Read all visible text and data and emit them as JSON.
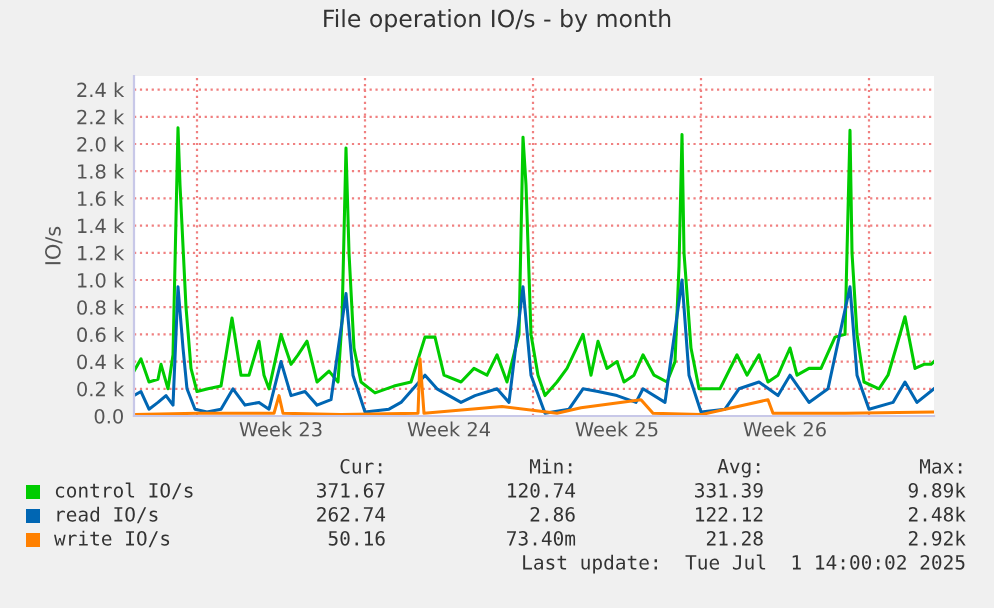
{
  "chart_data": {
    "type": "line",
    "title": "File operation IO/s - by month",
    "ylabel": "IO/s",
    "xlim": [
      "2025-05-29T09:00",
      "2025-07-01T17:00"
    ],
    "xticks": [
      {
        "value": "2025-06-04T12:00",
        "label": "Week 23"
      },
      {
        "value": "2025-06-11T12:00",
        "label": "Week 24"
      },
      {
        "value": "2025-06-18T12:00",
        "label": "Week 25"
      },
      {
        "value": "2025-06-25T12:00",
        "label": "Week 26"
      }
    ],
    "ylim": [
      0,
      2500
    ],
    "yticks": [
      {
        "value": 0,
        "label": "0.0"
      },
      {
        "value": 200,
        "label": "0.2 k"
      },
      {
        "value": 400,
        "label": "0.4 k"
      },
      {
        "value": 600,
        "label": "0.6 k"
      },
      {
        "value": 800,
        "label": "0.8 k"
      },
      {
        "value": 1000,
        "label": "1.0 k"
      },
      {
        "value": 1200,
        "label": "1.2 k"
      },
      {
        "value": 1400,
        "label": "1.4 k"
      },
      {
        "value": 1600,
        "label": "1.6 k"
      },
      {
        "value": 1800,
        "label": "1.8 k"
      },
      {
        "value": 2000,
        "label": "2.0 k"
      },
      {
        "value": 2200,
        "label": "2.2 k"
      },
      {
        "value": 2400,
        "label": "2.4 k"
      }
    ],
    "grid": "y",
    "legend": "bottom",
    "ref_lines": [
      {
        "axis": "x",
        "value": "2025-06-01T00:00",
        "color": "#f08080",
        "line_style": "dotted"
      },
      {
        "axis": "x",
        "value": "2025-06-08T00:00",
        "color": "#f08080",
        "line_style": "dotted"
      },
      {
        "axis": "x",
        "value": "2025-06-15T00:00",
        "color": "#f08080",
        "line_style": "dotted"
      },
      {
        "axis": "x",
        "value": "2025-06-22T00:00",
        "color": "#f08080",
        "line_style": "dotted"
      },
      {
        "axis": "x",
        "value": "2025-06-29T00:00",
        "color": "#f08080",
        "line_style": "dotted"
      }
    ],
    "series": [
      {
        "name": "control IO/s",
        "color": "#00cc00",
        "x": [
          "2025-05-29T09:00",
          "2025-05-29T16:00",
          "2025-05-30T00:00",
          "2025-05-30T09:00",
          "2025-05-30T12:00",
          "2025-05-30T19:00",
          "2025-05-31T00:00",
          "2025-05-31T05:00",
          "2025-05-31T07:00",
          "2025-05-31T13:00",
          "2025-05-31T18:00",
          "2025-06-01T00:00",
          "2025-06-01T11:00",
          "2025-06-02T00:00",
          "2025-06-02T11:00",
          "2025-06-02T20:00",
          "2025-06-03T04:00",
          "2025-06-03T14:00",
          "2025-06-03T19:00",
          "2025-06-04T00:00",
          "2025-06-04T12:00",
          "2025-06-04T22:00",
          "2025-06-05T05:00",
          "2025-06-05T14:00",
          "2025-06-06T00:00",
          "2025-06-06T12:00",
          "2025-06-06T21:00",
          "2025-06-07T01:00",
          "2025-06-07T05:00",
          "2025-06-07T08:00",
          "2025-06-07T13:00",
          "2025-06-07T20:00",
          "2025-06-08T10:00",
          "2025-06-09T05:00",
          "2025-06-09T22:00",
          "2025-06-10T12:00",
          "2025-06-10T22:00",
          "2025-06-11T07:00",
          "2025-06-12T00:00",
          "2025-06-12T13:00",
          "2025-06-13T02:00",
          "2025-06-13T12:00",
          "2025-06-13T22:00",
          "2025-06-14T10:00",
          "2025-06-14T14:00",
          "2025-06-14T17:00",
          "2025-06-14T22:00",
          "2025-06-15T05:00",
          "2025-06-15T12:00",
          "2025-06-16T00:00",
          "2025-06-16T10:00",
          "2025-06-17T02:00",
          "2025-06-17T10:00",
          "2025-06-17T17:00",
          "2025-06-18T02:00",
          "2025-06-18T12:00",
          "2025-06-18T19:00",
          "2025-06-19T05:00",
          "2025-06-19T14:00",
          "2025-06-20T01:00",
          "2025-06-20T14:00",
          "2025-06-20T22:00",
          "2025-06-21T02:00",
          "2025-06-21T05:00",
          "2025-06-21T07:00",
          "2025-06-21T14:00",
          "2025-06-21T22:00",
          "2025-06-22T07:00",
          "2025-06-22T19:00",
          "2025-06-23T12:00",
          "2025-06-23T22:00",
          "2025-06-24T10:00",
          "2025-06-24T19:00",
          "2025-06-25T05:00",
          "2025-06-25T17:00",
          "2025-06-26T00:00",
          "2025-06-26T12:00",
          "2025-06-27T00:00",
          "2025-06-27T14:00",
          "2025-06-28T00:00",
          "2025-06-28T05:00",
          "2025-06-28T07:00",
          "2025-06-28T12:00",
          "2025-06-28T19:00",
          "2025-06-29T10:00",
          "2025-06-29T19:00",
          "2025-06-30T05:00",
          "2025-06-30T12:00",
          "2025-06-30T22:00",
          "2025-07-01T07:00",
          "2025-07-01T14:00",
          "2025-07-01T17:00"
        ],
        "values": [
          330,
          420,
          250,
          270,
          380,
          200,
          450,
          2120,
          1700,
          800,
          350,
          180,
          200,
          220,
          720,
          300,
          300,
          550,
          300,
          200,
          600,
          380,
          450,
          550,
          250,
          330,
          250,
          700,
          1970,
          1200,
          500,
          250,
          170,
          220,
          250,
          580,
          580,
          300,
          250,
          350,
          300,
          450,
          250,
          600,
          2050,
          1700,
          600,
          300,
          150,
          250,
          350,
          600,
          300,
          550,
          350,
          400,
          250,
          300,
          450,
          300,
          250,
          400,
          1100,
          2070,
          1200,
          500,
          200,
          200,
          200,
          450,
          300,
          450,
          250,
          300,
          500,
          300,
          350,
          350,
          580,
          600,
          2100,
          1200,
          600,
          250,
          200,
          300,
          550,
          730,
          350,
          380,
          380,
          400
        ]
      },
      {
        "name": "read IO/s",
        "color": "#0066b3",
        "x": [
          "2025-05-29T09:00",
          "2025-05-29T16:00",
          "2025-05-30T00:00",
          "2025-05-30T09:00",
          "2025-05-30T17:00",
          "2025-05-31T00:00",
          "2025-05-31T05:00",
          "2025-05-31T10:00",
          "2025-05-31T14:00",
          "2025-05-31T22:00",
          "2025-06-01T10:00",
          "2025-06-02T00:00",
          "2025-06-02T12:00",
          "2025-06-03T00:00",
          "2025-06-03T14:00",
          "2025-06-04T00:00",
          "2025-06-04T12:00",
          "2025-06-04T22:00",
          "2025-06-05T12:00",
          "2025-06-06T00:00",
          "2025-06-06T14:00",
          "2025-06-07T05:00",
          "2025-06-07T12:00",
          "2025-06-08T00:00",
          "2025-06-09T00:00",
          "2025-06-09T12:00",
          "2025-06-10T12:00",
          "2025-06-11T00:00",
          "2025-06-12T00:00",
          "2025-06-12T14:00",
          "2025-06-13T12:00",
          "2025-06-14T00:00",
          "2025-06-14T14:00",
          "2025-06-14T22:00",
          "2025-06-15T12:00",
          "2025-06-16T12:00",
          "2025-06-17T02:00",
          "2025-06-17T17:00",
          "2025-06-18T12:00",
          "2025-06-19T07:00",
          "2025-06-19T14:00",
          "2025-06-20T12:00",
          "2025-06-21T05:00",
          "2025-06-21T12:00",
          "2025-06-22T00:00",
          "2025-06-23T00:00",
          "2025-06-23T14:00",
          "2025-06-24T10:00",
          "2025-06-25T05:00",
          "2025-06-25T17:00",
          "2025-06-26T12:00",
          "2025-06-27T07:00",
          "2025-06-28T05:00",
          "2025-06-28T12:00",
          "2025-06-29T00:00",
          "2025-06-30T00:00",
          "2025-06-30T12:00",
          "2025-07-01T00:00",
          "2025-07-01T17:00"
        ],
        "values": [
          150,
          180,
          50,
          100,
          150,
          80,
          950,
          500,
          200,
          50,
          30,
          50,
          200,
          80,
          100,
          50,
          400,
          150,
          180,
          80,
          120,
          900,
          300,
          30,
          50,
          100,
          300,
          200,
          100,
          150,
          200,
          100,
          950,
          300,
          20,
          50,
          200,
          180,
          150,
          100,
          200,
          100,
          1000,
          300,
          30,
          50,
          200,
          250,
          150,
          300,
          100,
          200,
          950,
          300,
          50,
          100,
          250,
          100,
          200
        ]
      },
      {
        "name": "write IO/s",
        "color": "#ff8000",
        "x": [
          "2025-05-29T09:00",
          "2025-06-01T00:00",
          "2025-06-04T05:00",
          "2025-06-04T10:00",
          "2025-06-04T14:00",
          "2025-06-07T00:00",
          "2025-06-10T05:00",
          "2025-06-10T07:00",
          "2025-06-10T11:00",
          "2025-06-13T17:00",
          "2025-06-16T00:00",
          "2025-06-17T00:00",
          "2025-06-19T12:00",
          "2025-06-20T00:00",
          "2025-06-22T00:00",
          "2025-06-24T19:00",
          "2025-06-25T00:00",
          "2025-06-28T00:00",
          "2025-07-01T17:00"
        ],
        "values": [
          10,
          20,
          20,
          150,
          20,
          10,
          20,
          420,
          20,
          70,
          20,
          60,
          120,
          20,
          10,
          120,
          20,
          20,
          30
        ]
      }
    ],
    "annotations": [
      "Cur:",
      "Min:",
      "Avg:",
      "Max:",
      "371.67",
      "120.74",
      "331.39",
      "9.89k",
      "262.74",
      "2.86",
      "122.12",
      "2.48k",
      "50.16",
      "73.40m",
      "21.28",
      "2.92k",
      "Last update:  Tue Jul  1 14:00:02 2025"
    ]
  }
}
